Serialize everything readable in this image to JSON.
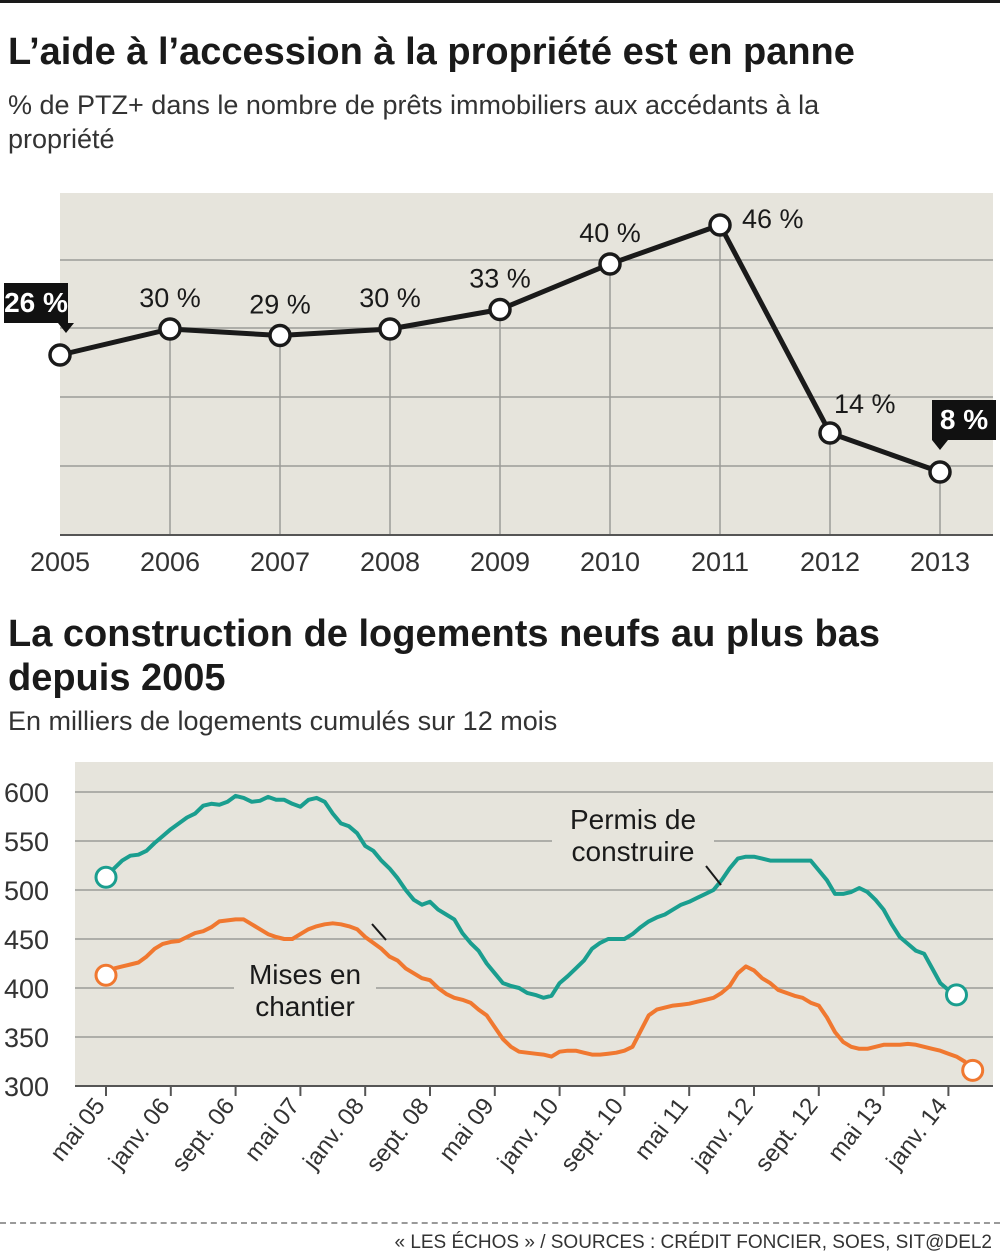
{
  "chart_data": [
    {
      "type": "line",
      "title": "L’aide à l’accession à la propriété est en panne",
      "subtitle": "% de PTZ+ dans le nombre de prêts immobiliers aux accédants à la propriété",
      "categories": [
        "2005",
        "2006",
        "2007",
        "2008",
        "2009",
        "2010",
        "2011",
        "2012",
        "2013"
      ],
      "values": [
        26,
        30,
        29,
        30,
        33,
        40,
        46,
        14,
        8
      ],
      "data_labels": [
        "26 %",
        "30 %",
        "29 %",
        "30 %",
        "33 %",
        "40 %",
        "46 %",
        "14 %",
        "8 %"
      ],
      "highlighted_labels": [
        0,
        8
      ],
      "ylim": [
        0,
        50
      ],
      "grid": true,
      "colors": {
        "line": "#1a1a1a",
        "plot_bg": "#e6e4dc",
        "grid": "#9c9c98",
        "marker_fill": "#ffffff"
      }
    },
    {
      "type": "line",
      "title": "La construction de logements neufs au plus bas depuis 2005",
      "subtitle": "En milliers de logements cumulés sur 12 mois",
      "x_tick_labels": [
        "mai 05",
        "janv. 06",
        "sept. 06",
        "mai 07",
        "janv. 08",
        "sept. 08",
        "mai 09",
        "janv. 10",
        "sept. 10",
        "mai 11",
        "janv. 12",
        "sept. 12",
        "mai 13",
        "janv. 14"
      ],
      "x_start": "mai 05",
      "x_step": "1 mois",
      "y_ticks": [
        300,
        350,
        400,
        450,
        500,
        550,
        600
      ],
      "ylim": [
        300,
        620
      ],
      "grid": true,
      "series": [
        {
          "name": "Permis de construire",
          "color": "#1a9e8f",
          "values": [
            513,
            522,
            530,
            535,
            536,
            540,
            548,
            555,
            562,
            568,
            574,
            578,
            586,
            588,
            587,
            590,
            596,
            594,
            590,
            591,
            595,
            592,
            592,
            588,
            585,
            592,
            594,
            590,
            578,
            568,
            565,
            558,
            545,
            540,
            530,
            522,
            512,
            500,
            490,
            485,
            488,
            480,
            475,
            470,
            456,
            446,
            438,
            425,
            415,
            405,
            402,
            400,
            395,
            393,
            390,
            392,
            405,
            412,
            420,
            428,
            440,
            446,
            450,
            450,
            450,
            455,
            462,
            468,
            472,
            475,
            480,
            485,
            488,
            492,
            496,
            500,
            510,
            522,
            532,
            534,
            534,
            532,
            530,
            530,
            530,
            530,
            530,
            530,
            520,
            510,
            496,
            496,
            498,
            502,
            498,
            490,
            480,
            465,
            452,
            445,
            438,
            435,
            420,
            405,
            398,
            393
          ]
        },
        {
          "name": "Mises en chantier",
          "color": "#f07830",
          "values": [
            413,
            420,
            422,
            424,
            426,
            432,
            440,
            445,
            447,
            448,
            452,
            456,
            458,
            462,
            468,
            469,
            470,
            470,
            465,
            460,
            455,
            452,
            450,
            450,
            455,
            460,
            463,
            465,
            466,
            465,
            463,
            460,
            452,
            446,
            440,
            432,
            428,
            420,
            415,
            410,
            408,
            400,
            394,
            390,
            388,
            385,
            378,
            372,
            360,
            348,
            340,
            335,
            334,
            333,
            332,
            330,
            335,
            336,
            336,
            334,
            332,
            332,
            333,
            334,
            336,
            340,
            356,
            372,
            378,
            380,
            382,
            383,
            384,
            386,
            388,
            390,
            395,
            402,
            415,
            422,
            418,
            410,
            405,
            398,
            395,
            392,
            390,
            385,
            382,
            370,
            355,
            345,
            340,
            338,
            338,
            340,
            342,
            342,
            342,
            343,
            342,
            340,
            338,
            336,
            333,
            330,
            325,
            316
          ]
        }
      ],
      "colors": {
        "plot_bg": "#e6e4dc",
        "grid": "#9c9c98"
      }
    }
  ],
  "source": "« LES ÉCHOS » / SOURCES : CRÉDIT FONCIER, SOES, SIT@DEL2"
}
